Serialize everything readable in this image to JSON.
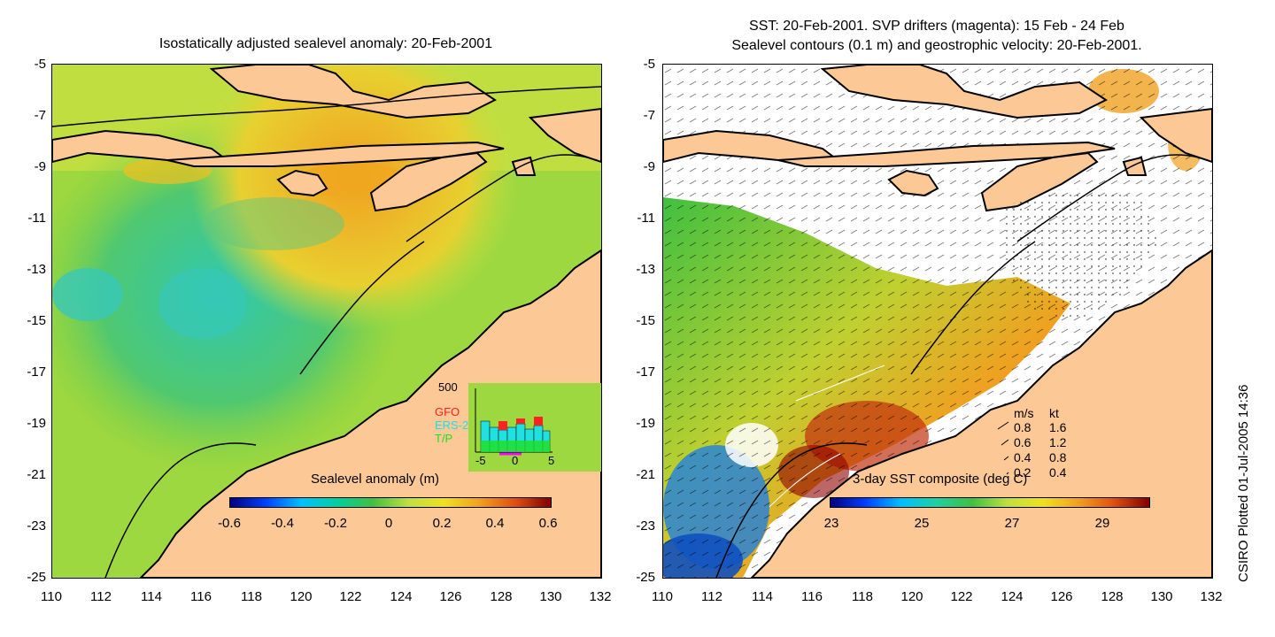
{
  "left_panel": {
    "title": "Isostatically adjusted sealevel anomaly: 20-Feb-2001",
    "y_ticks": [
      "-5",
      "-7",
      "-9",
      "-11",
      "-13",
      "-15",
      "-17",
      "-19",
      "-21",
      "-23",
      "-25"
    ],
    "x_ticks": [
      "110",
      "112",
      "114",
      "116",
      "118",
      "120",
      "122",
      "124",
      "126",
      "128",
      "130",
      "132"
    ],
    "colorbar_label": "Sealevel anomaly (m)",
    "colorbar_ticks": [
      "-0.6",
      "-0.4",
      "-0.2",
      "0",
      "0.2",
      "0.4",
      "0.6"
    ],
    "histogram": {
      "ymax_label": "500",
      "legend": [
        "GFO",
        "ERS-2",
        "T/P"
      ],
      "legend_colors": [
        "#ff2020",
        "#20e0e0",
        "#20e020"
      ],
      "x_ticks": [
        "-5",
        "0",
        "5"
      ]
    }
  },
  "right_panel": {
    "title_line1": "SST: 20-Feb-2001. SVP drifters (magenta): 15 Feb - 24 Feb",
    "title_line2": "Sealevel contours (0.1 m) and geostrophic velocity: 20-Feb-2001.",
    "y_ticks": [
      "-5",
      "-7",
      "-9",
      "-11",
      "-13",
      "-15",
      "-17",
      "-19",
      "-21",
      "-23",
      "-25"
    ],
    "x_ticks": [
      "110",
      "112",
      "114",
      "116",
      "118",
      "120",
      "122",
      "124",
      "126",
      "128",
      "130",
      "132"
    ],
    "colorbar_label": "3-day SST composite (deg C)",
    "colorbar_ticks": [
      "23",
      "25",
      "27",
      "29"
    ],
    "velocity_key": {
      "header_ms": "m/s",
      "header_kt": "kt",
      "rows": [
        {
          "ms": "0.8",
          "kt": "1.6"
        },
        {
          "ms": "0.6",
          "kt": "1.2"
        },
        {
          "ms": "0.4",
          "kt": "0.8"
        },
        {
          "ms": "0.2",
          "kt": "0.4"
        }
      ]
    }
  },
  "credit": "CSIRO Plotted 01-Jul-2005 14:36",
  "colors": {
    "land": "#fcc896",
    "coast": "#000000"
  }
}
